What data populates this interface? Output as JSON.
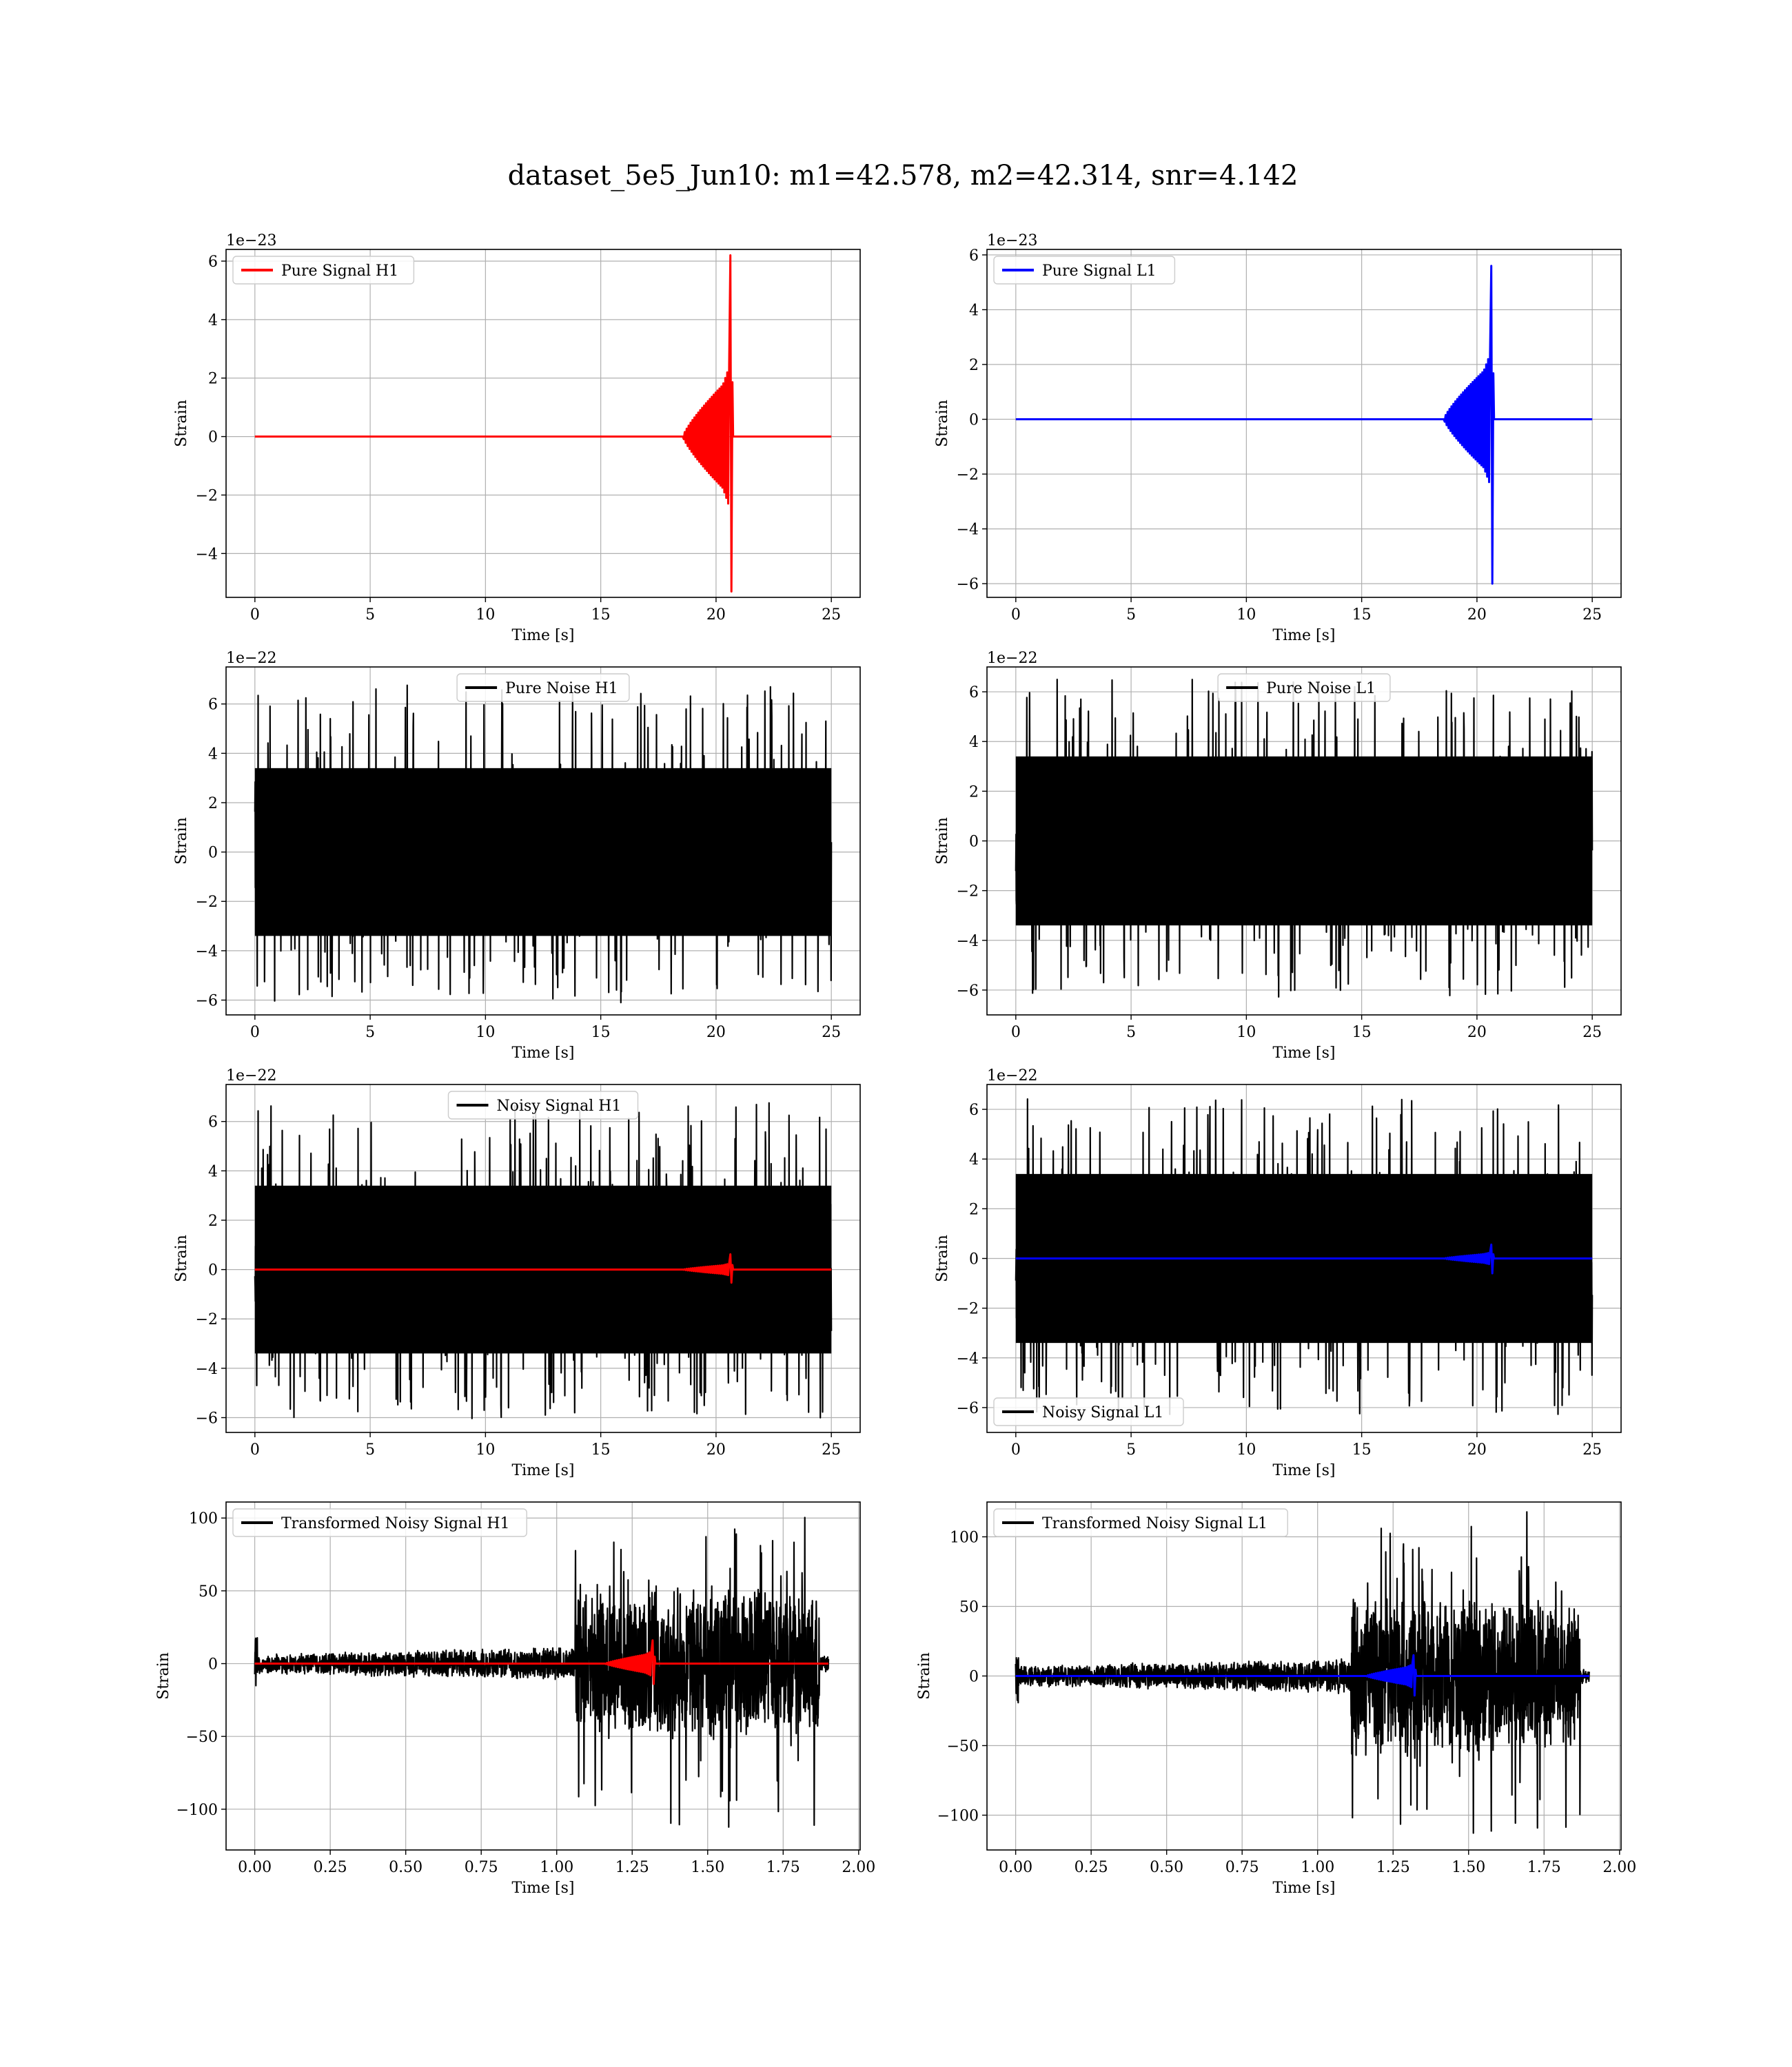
{
  "figure": {
    "title": "dataset_5e5_Jun10: m1=42.578, m2=42.314, snr=4.142"
  },
  "chart_data": [
    {
      "type": "line",
      "id": "pure-signal-h1",
      "xlabel": "Time [s]",
      "ylabel": "Strain",
      "offset_text": "1e−23",
      "xlim": [
        -1.25,
        26.25
      ],
      "ylim": [
        -5.5,
        6.4
      ],
      "xticks": [
        0,
        5,
        10,
        15,
        20,
        25
      ],
      "yticks": [
        -4,
        -2,
        0,
        2,
        4,
        6
      ],
      "legend_position": "upper left",
      "grid": true,
      "series": [
        {
          "name": "Pure Signal H1",
          "color": "#ff0000",
          "kind": "chirp",
          "x_start": 0,
          "x_end": 25,
          "t_merge": 20.65,
          "inspiral_amp": 2.0,
          "peak_max": 6.2,
          "peak_min": -5.3
        }
      ]
    },
    {
      "type": "line",
      "id": "pure-signal-l1",
      "xlabel": "Time [s]",
      "ylabel": "Strain",
      "offset_text": "1e−23",
      "xlim": [
        -1.25,
        26.25
      ],
      "ylim": [
        -6.5,
        6.2
      ],
      "xticks": [
        0,
        5,
        10,
        15,
        20,
        25
      ],
      "yticks": [
        -6,
        -4,
        -2,
        0,
        2,
        4,
        6
      ],
      "legend_position": "upper left",
      "grid": true,
      "series": [
        {
          "name": "Pure Signal L1",
          "color": "#0000ff",
          "kind": "chirp",
          "x_start": 0,
          "x_end": 25,
          "t_merge": 20.65,
          "inspiral_amp": 2.0,
          "peak_max": 5.6,
          "peak_min": -6.0
        }
      ]
    },
    {
      "type": "line",
      "id": "pure-noise-h1",
      "xlabel": "Time [s]",
      "ylabel": "Strain",
      "offset_text": "1e−22",
      "xlim": [
        -1.25,
        26.25
      ],
      "ylim": [
        -6.6,
        7.5
      ],
      "xticks": [
        0,
        5,
        10,
        15,
        20,
        25
      ],
      "yticks": [
        -6,
        -4,
        -2,
        0,
        2,
        4,
        6
      ],
      "legend_position": "upper center",
      "grid": true,
      "series": [
        {
          "name": "Pure Noise H1",
          "color": "#000000",
          "kind": "noise",
          "x_start": 0,
          "x_end": 25,
          "core": 3.4,
          "max": 6.8,
          "min": -6.1
        }
      ]
    },
    {
      "type": "line",
      "id": "pure-noise-l1",
      "xlabel": "Time [s]",
      "ylabel": "Strain",
      "offset_text": "1e−22",
      "xlim": [
        -1.25,
        26.25
      ],
      "ylim": [
        -7.0,
        7.0
      ],
      "xticks": [
        0,
        5,
        10,
        15,
        20,
        25
      ],
      "yticks": [
        -6,
        -4,
        -2,
        0,
        2,
        4,
        6
      ],
      "legend_position": "upper center",
      "grid": true,
      "series": [
        {
          "name": "Pure Noise L1",
          "color": "#000000",
          "kind": "noise",
          "x_start": 0,
          "x_end": 25,
          "core": 3.4,
          "max": 6.5,
          "min": -6.3
        }
      ]
    },
    {
      "type": "line",
      "id": "noisy-signal-h1",
      "xlabel": "Time [s]",
      "ylabel": "Strain",
      "offset_text": "1e−22",
      "xlim": [
        -1.25,
        26.25
      ],
      "ylim": [
        -6.6,
        7.5
      ],
      "xticks": [
        0,
        5,
        10,
        15,
        20,
        25
      ],
      "yticks": [
        -6,
        -4,
        -2,
        0,
        2,
        4,
        6
      ],
      "legend_position": "upper center",
      "grid": true,
      "series": [
        {
          "name": "Noisy Signal H1",
          "color": "#000000",
          "kind": "noise",
          "x_start": 0,
          "x_end": 25,
          "core": 3.4,
          "max": 6.8,
          "min": -6.1
        },
        {
          "name": "",
          "color": "#ff0000",
          "kind": "chirp",
          "x_start": 0,
          "x_end": 25,
          "t_merge": 20.65,
          "inspiral_amp": 0.2,
          "peak_max": 0.62,
          "peak_min": -0.53
        }
      ]
    },
    {
      "type": "line",
      "id": "noisy-signal-l1",
      "xlabel": "Time [s]",
      "ylabel": "Strain",
      "offset_text": "1e−22",
      "xlim": [
        -1.25,
        26.25
      ],
      "ylim": [
        -7.0,
        7.0
      ],
      "xticks": [
        0,
        5,
        10,
        15,
        20,
        25
      ],
      "yticks": [
        -6,
        -4,
        -2,
        0,
        2,
        4,
        6
      ],
      "legend_position": "lower left",
      "grid": true,
      "series": [
        {
          "name": "Noisy Signal L1",
          "color": "#000000",
          "kind": "noise",
          "x_start": 0,
          "x_end": 25,
          "core": 3.4,
          "max": 6.5,
          "min": -6.3
        },
        {
          "name": "",
          "color": "#0000ff",
          "kind": "chirp",
          "x_start": 0,
          "x_end": 25,
          "t_merge": 20.65,
          "inspiral_amp": 0.2,
          "peak_max": 0.56,
          "peak_min": -0.6
        }
      ]
    },
    {
      "type": "line",
      "id": "transformed-noisy-signal-h1",
      "xlabel": "Time [s]",
      "ylabel": "Strain",
      "offset_text": "",
      "xlim": [
        -0.095,
        2.005
      ],
      "ylim": [
        -128,
        111
      ],
      "xticks": [
        0.0,
        0.25,
        0.5,
        0.75,
        1.0,
        1.25,
        1.5,
        1.75,
        2.0
      ],
      "xtick_labels": [
        "0.00",
        "0.25",
        "0.50",
        "0.75",
        "1.00",
        "1.25",
        "1.50",
        "1.75",
        "2.00"
      ],
      "yticks": [
        -100,
        -50,
        0,
        50,
        100
      ],
      "legend_position": "upper left",
      "grid": true,
      "series": [
        {
          "name": "Transformed Noisy Signal H1",
          "color": "#000000",
          "kind": "whitened",
          "x_start": 0,
          "x_end": 1.9,
          "quiet_end": 1.06,
          "loud_end": 1.87,
          "quiet_amp": 12,
          "loud_amp": 55,
          "max": 103,
          "min": -118
        },
        {
          "name": "",
          "color": "#ff0000",
          "kind": "chirp",
          "x_start": 0,
          "x_end": 1.9,
          "t_merge": 1.32,
          "inspiral_amp": 7,
          "peak_max": 16,
          "peak_min": -14
        }
      ]
    },
    {
      "type": "line",
      "id": "transformed-noisy-signal-l1",
      "xlabel": "Time [s]",
      "ylabel": "Strain",
      "offset_text": "",
      "xlim": [
        -0.095,
        2.005
      ],
      "ylim": [
        -125,
        125
      ],
      "xticks": [
        0.0,
        0.25,
        0.5,
        0.75,
        1.0,
        1.25,
        1.5,
        1.75,
        2.0
      ],
      "xtick_labels": [
        "0.00",
        "0.25",
        "0.50",
        "0.75",
        "1.00",
        "1.25",
        "1.50",
        "1.75",
        "2.00"
      ],
      "yticks": [
        -100,
        -50,
        0,
        50,
        100
      ],
      "legend_position": "upper left",
      "grid": true,
      "series": [
        {
          "name": "Transformed Noisy Signal L1",
          "color": "#000000",
          "kind": "whitened",
          "x_start": 0,
          "x_end": 1.9,
          "quiet_end": 1.11,
          "loud_end": 1.87,
          "quiet_amp": 13,
          "loud_amp": 58,
          "max": 118,
          "min": -115
        },
        {
          "name": "",
          "color": "#0000ff",
          "kind": "chirp",
          "x_start": 0,
          "x_end": 1.9,
          "t_merge": 1.32,
          "inspiral_amp": 7,
          "peak_max": 15,
          "peak_min": -14
        }
      ]
    }
  ]
}
